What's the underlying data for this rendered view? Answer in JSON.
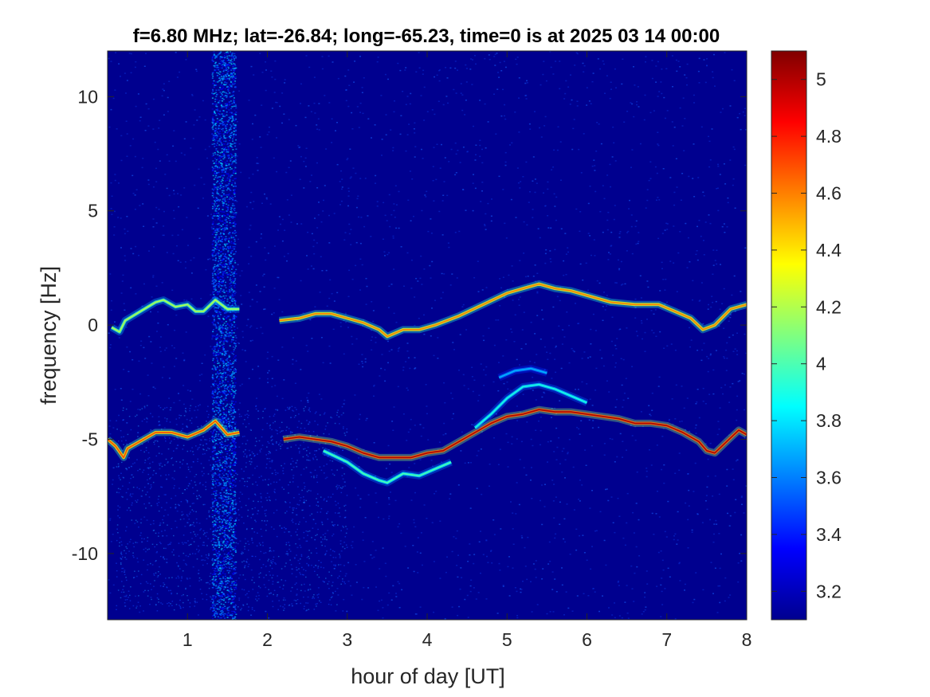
{
  "chart_data": {
    "type": "heatmap",
    "title": "f=6.80 MHz;  lat=-26.84; long=-65.23, time=0 is at 2025 03 14 00:00",
    "xlabel": "hour of day [UT]",
    "ylabel": "frequency [Hz]",
    "xlim": [
      0,
      8
    ],
    "ylim": [
      -12.9,
      12.0
    ],
    "x_ticks": [
      1,
      2,
      3,
      4,
      5,
      6,
      7,
      8
    ],
    "x_tick_labels": [
      "1",
      "2",
      "3",
      "4",
      "5",
      "6",
      "7",
      "8"
    ],
    "y_ticks": [
      10,
      5,
      0,
      -5,
      -10
    ],
    "y_tick_labels": [
      "10",
      "5",
      "0",
      "-5",
      "-10"
    ],
    "colormap": "jet",
    "background_color": "#00008f",
    "colorbar": {
      "range": [
        3.1,
        5.1
      ],
      "ticks": [
        3.2,
        3.4,
        3.6,
        3.8,
        4,
        4.2,
        4.4,
        4.6,
        4.8,
        5
      ],
      "tick_labels": [
        "3.2",
        "3.4",
        "3.6",
        "3.8",
        "4",
        "4.2",
        "4.4",
        "4.6",
        "4.8",
        "5"
      ]
    },
    "traces": [
      {
        "name": "upper trace",
        "x": [
          0.05,
          0.15,
          0.22,
          0.6,
          0.7,
          0.85,
          1.0,
          1.1,
          1.2,
          1.35,
          1.5,
          1.65
        ],
        "y": [
          -0.1,
          -0.3,
          0.2,
          1.0,
          1.1,
          0.8,
          0.9,
          0.6,
          0.6,
          1.1,
          0.7,
          0.7
        ],
        "peak": 4.2
      },
      {
        "name": "upper trace",
        "x": [
          2.15,
          2.4,
          2.6,
          2.8,
          3.0,
          3.2,
          3.4,
          3.5,
          3.7,
          3.9,
          4.1,
          4.4,
          4.7,
          5.0,
          5.2,
          5.4,
          5.6,
          5.8,
          6.0,
          6.3,
          6.6,
          6.9,
          7.1,
          7.3,
          7.45,
          7.6,
          7.8,
          8.0
        ],
        "y": [
          0.2,
          0.3,
          0.5,
          0.5,
          0.3,
          0.1,
          -0.2,
          -0.5,
          -0.2,
          -0.2,
          0.0,
          0.4,
          0.9,
          1.4,
          1.6,
          1.8,
          1.6,
          1.5,
          1.3,
          1.0,
          0.9,
          0.9,
          0.6,
          0.3,
          -0.2,
          0.0,
          0.7,
          0.9
        ],
        "peak": 4.6
      },
      {
        "name": "lower trace",
        "x": [
          0.0,
          0.1,
          0.2,
          0.25,
          0.6,
          0.8,
          1.0,
          1.2,
          1.35,
          1.5,
          1.65
        ],
        "y": [
          -5.0,
          -5.3,
          -5.8,
          -5.4,
          -4.7,
          -4.7,
          -4.9,
          -4.6,
          -4.2,
          -4.8,
          -4.7
        ],
        "peak": 4.7
      },
      {
        "name": "lower trace",
        "x": [
          2.2,
          2.4,
          2.6,
          2.8,
          3.0,
          3.2,
          3.4,
          3.6,
          3.8,
          4.0,
          4.2,
          4.4,
          4.6,
          4.8,
          5.0,
          5.2,
          5.4,
          5.6,
          5.8,
          6.0,
          6.2,
          6.4,
          6.6,
          6.8,
          7.0,
          7.2,
          7.4,
          7.5,
          7.6,
          7.75,
          7.9,
          8.0
        ],
        "y": [
          -5.0,
          -4.9,
          -5.0,
          -5.1,
          -5.3,
          -5.6,
          -5.8,
          -5.8,
          -5.8,
          -5.6,
          -5.5,
          -5.1,
          -4.7,
          -4.3,
          -4.0,
          -3.9,
          -3.7,
          -3.8,
          -3.8,
          -3.9,
          -4.0,
          -4.1,
          -4.3,
          -4.3,
          -4.4,
          -4.7,
          -5.1,
          -5.5,
          -5.6,
          -5.1,
          -4.6,
          -4.8
        ],
        "peak": 5.0
      },
      {
        "name": "lower branch",
        "x": [
          2.7,
          3.0,
          3.2,
          3.4,
          3.5,
          3.7,
          3.9,
          4.1,
          4.3
        ],
        "y": [
          -5.5,
          -6.0,
          -6.5,
          -6.8,
          -6.9,
          -6.5,
          -6.6,
          -6.3,
          -6.0
        ],
        "peak": 4.0
      },
      {
        "name": "upper branch",
        "x": [
          4.6,
          4.8,
          5.0,
          5.2,
          5.4,
          5.6,
          5.8,
          6.0
        ],
        "y": [
          -4.5,
          -3.9,
          -3.2,
          -2.7,
          -2.6,
          -2.8,
          -3.1,
          -3.4
        ],
        "peak": 3.9
      },
      {
        "name": "upper branch",
        "x": [
          4.9,
          5.1,
          5.3,
          5.5
        ],
        "y": [
          -2.3,
          -2.0,
          -1.9,
          -2.1
        ],
        "peak": 3.7
      }
    ]
  }
}
